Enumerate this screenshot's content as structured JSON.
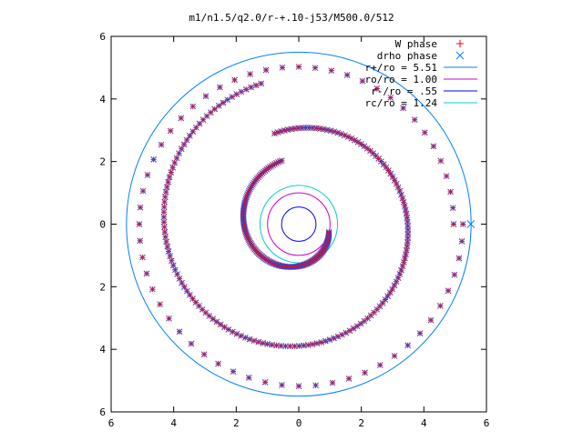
{
  "chart_data": {
    "type": "scatter",
    "title": "m1/n1.5/q2.0/r-+.10-j53/M500.0/512",
    "xlabel": "",
    "ylabel": "",
    "xlim": [
      -6,
      6
    ],
    "ylim": [
      -6,
      6
    ],
    "grid": false,
    "legend_position": "top-right",
    "x_tick_values": [
      -6,
      -4,
      -2,
      0,
      2,
      4,
      6
    ],
    "x_tick_labels": [
      "6",
      "4",
      "2",
      "0",
      "2",
      "4",
      "6"
    ],
    "y_tick_values": [
      6,
      4,
      2,
      0,
      -2,
      -4,
      -6
    ],
    "y_tick_labels": [
      "6",
      "4",
      "2",
      "0",
      "2",
      "4",
      "6"
    ],
    "series": [
      {
        "name": "W phase",
        "marker": "+",
        "color": "#ff0000",
        "spiral": {
          "outer_turn": {
            "theta_start_deg": 0,
            "theta_end_deg": 360,
            "r_start": 4.95,
            "r_end": 5.25,
            "center": [
              0,
              0.0
            ]
          },
          "middle_turn": {
            "theta_start_deg": 105,
            "theta_end_deg": 465,
            "r_start": 4.65,
            "r_end": 3.0
          },
          "inner_turn": {
            "theta_start_deg": 105,
            "theta_end_deg": 345,
            "r_start": 2.1,
            "r_end": 1.0
          }
        }
      },
      {
        "name": "drho phase",
        "marker": "x",
        "color": "#0000ff",
        "marker_at": [
          5.5,
          0
        ]
      },
      {
        "name": "r+/ro = 5.51",
        "type": "circle",
        "radius": 5.51,
        "center": [
          0,
          0
        ],
        "color": "#0080ff"
      },
      {
        "name": "ro/ro = 1.00",
        "type": "circle",
        "radius": 1.0,
        "center": [
          0,
          0
        ],
        "color": "#cc00cc"
      },
      {
        "name": "r-/ro = .55",
        "type": "circle",
        "radius": 0.55,
        "center": [
          0,
          0
        ],
        "color": "#0000ff"
      },
      {
        "name": "rc/ro = 1.24",
        "type": "circle",
        "radius": 1.24,
        "center": [
          0,
          0
        ],
        "color": "#00cccc"
      }
    ]
  }
}
